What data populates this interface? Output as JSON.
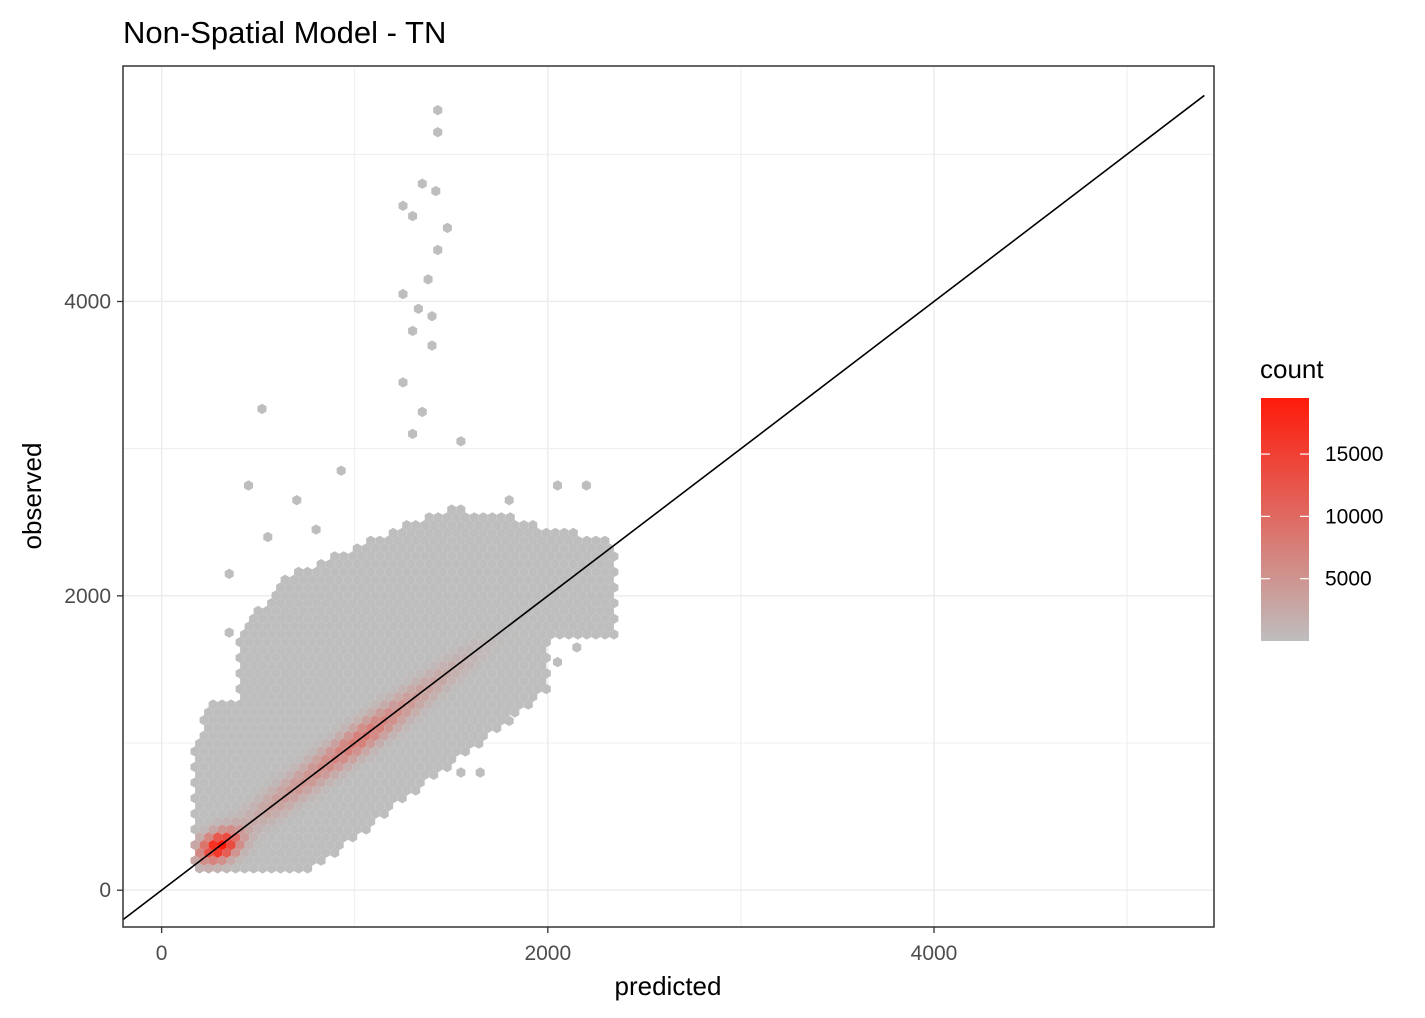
{
  "chart_data": {
    "type": "heatmap",
    "subtype": "hexbin",
    "title": "Non-Spatial Model - TN",
    "xlabel": "predicted",
    "ylabel": "observed",
    "xlim": [
      -200,
      5450
    ],
    "ylim": [
      -250,
      5600
    ],
    "x_ticks": [
      0,
      2000,
      4000
    ],
    "y_ticks": [
      0,
      2000,
      4000
    ],
    "grid": true,
    "reference_line": {
      "type": "identity",
      "slope": 1,
      "intercept": 0,
      "color": "#000000"
    },
    "legend": {
      "title": "count",
      "position": "right",
      "range": [
        1,
        19500
      ],
      "ticks": [
        5000,
        10000,
        15000
      ],
      "low_color": "#bebebe",
      "high_color": "#ff1a0a"
    },
    "density_ridge": [
      {
        "x": 300,
        "y": 300,
        "count": 19500
      },
      {
        "x": 1000,
        "y": 1000,
        "count": 8000
      },
      {
        "x": 1200,
        "y": 1200,
        "count": 6000
      },
      {
        "x": 1500,
        "y": 1500,
        "count": 1500
      }
    ],
    "outliers": [
      {
        "x": 1430,
        "y": 5300
      },
      {
        "x": 1430,
        "y": 5150
      },
      {
        "x": 1350,
        "y": 4800
      },
      {
        "x": 1420,
        "y": 4750
      },
      {
        "x": 1250,
        "y": 4650
      },
      {
        "x": 1300,
        "y": 4580
      },
      {
        "x": 1480,
        "y": 4500
      },
      {
        "x": 1430,
        "y": 4350
      },
      {
        "x": 1380,
        "y": 4150
      },
      {
        "x": 1250,
        "y": 4050
      },
      {
        "x": 1330,
        "y": 3950
      },
      {
        "x": 1400,
        "y": 3900
      },
      {
        "x": 1300,
        "y": 3800
      },
      {
        "x": 1400,
        "y": 3700
      },
      {
        "x": 520,
        "y": 3270
      },
      {
        "x": 1250,
        "y": 3450
      },
      {
        "x": 1350,
        "y": 3250
      },
      {
        "x": 1300,
        "y": 3100
      },
      {
        "x": 1550,
        "y": 3050
      },
      {
        "x": 930,
        "y": 2850
      },
      {
        "x": 450,
        "y": 2750
      },
      {
        "x": 700,
        "y": 2650
      },
      {
        "x": 2050,
        "y": 2750
      },
      {
        "x": 2200,
        "y": 2750
      },
      {
        "x": 1800,
        "y": 2650
      },
      {
        "x": 800,
        "y": 2450
      },
      {
        "x": 550,
        "y": 2400
      },
      {
        "x": 350,
        "y": 2150
      },
      {
        "x": 350,
        "y": 1750
      },
      {
        "x": 2150,
        "y": 1650
      },
      {
        "x": 2050,
        "y": 1550
      },
      {
        "x": 1800,
        "y": 1150
      },
      {
        "x": 1550,
        "y": 800
      },
      {
        "x": 1650,
        "y": 800
      }
    ],
    "identity_line_points": [
      {
        "x": -200,
        "y": -200
      },
      {
        "x": 5400,
        "y": 5400
      }
    ]
  }
}
